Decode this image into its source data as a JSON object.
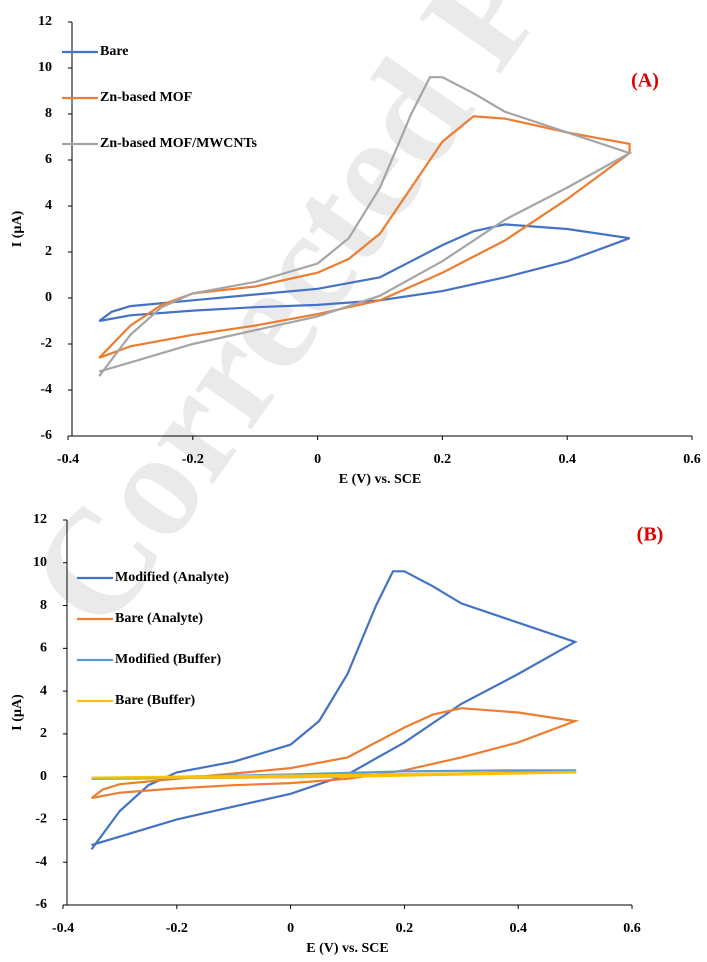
{
  "chart_data": [
    {
      "type": "line",
      "label": "(A)",
      "xlabel": "E (V) vs. SCE",
      "ylabel": "I (µA)",
      "xlim": [
        -0.4,
        0.6
      ],
      "xticks": [
        -0.4,
        -0.2,
        0,
        0.2,
        0.4,
        0.6
      ],
      "ylim": [
        -6,
        12
      ],
      "yticks": [
        -6,
        -4,
        -2,
        0,
        2,
        4,
        6,
        8,
        10,
        12
      ],
      "series": [
        {
          "name": "Bare",
          "color": "#4472c4",
          "x": [
            -0.35,
            -0.33,
            -0.3,
            -0.2,
            -0.1,
            0,
            0.1,
            0.15,
            0.2,
            0.25,
            0.3,
            0.4,
            0.5,
            0.4,
            0.3,
            0.2,
            0.1,
            0,
            -0.1,
            -0.2,
            -0.3,
            -0.35
          ],
          "values": [
            -1.0,
            -0.6,
            -0.35,
            -0.1,
            0.15,
            0.4,
            0.9,
            1.6,
            2.3,
            2.9,
            3.2,
            3.0,
            2.6,
            1.6,
            0.9,
            0.3,
            -0.1,
            -0.3,
            -0.4,
            -0.55,
            -0.75,
            -1.0
          ]
        },
        {
          "name": "Zn-based MOF",
          "color": "#ed7d31",
          "x": [
            -0.35,
            -0.3,
            -0.25,
            -0.2,
            -0.1,
            0,
            0.05,
            0.1,
            0.15,
            0.2,
            0.25,
            0.3,
            0.4,
            0.5,
            0.5,
            0.4,
            0.3,
            0.2,
            0.1,
            0,
            -0.1,
            -0.2,
            -0.3,
            -0.35
          ],
          "values": [
            -2.6,
            -1.2,
            -0.3,
            0.2,
            0.5,
            1.1,
            1.7,
            2.8,
            4.8,
            6.8,
            7.9,
            7.8,
            7.2,
            6.7,
            6.3,
            4.3,
            2.5,
            1.1,
            -0.1,
            -0.7,
            -1.2,
            -1.6,
            -2.1,
            -2.6
          ]
        },
        {
          "name": "Zn-based MOF/MWCNTs",
          "color": "#a5a5a5",
          "x": [
            -0.35,
            -0.3,
            -0.25,
            -0.2,
            -0.1,
            0,
            0.05,
            0.1,
            0.15,
            0.18,
            0.2,
            0.25,
            0.3,
            0.4,
            0.5,
            0.4,
            0.3,
            0.2,
            0.1,
            0,
            -0.1,
            -0.2,
            -0.3,
            -0.35
          ],
          "values": [
            -3.4,
            -1.6,
            -0.4,
            0.2,
            0.7,
            1.5,
            2.6,
            4.8,
            8.0,
            9.6,
            9.6,
            8.9,
            8.1,
            7.2,
            6.3,
            4.8,
            3.4,
            1.6,
            0.1,
            -0.8,
            -1.4,
            -2.0,
            -2.8,
            -3.2
          ]
        }
      ]
    },
    {
      "type": "line",
      "label": "(B)",
      "xlabel": "E (V) vs. SCE",
      "ylabel": "I (µA)",
      "xlim": [
        -0.4,
        0.6
      ],
      "xticks": [
        -0.4,
        -0.2,
        0,
        0.2,
        0.4,
        0.6
      ],
      "ylim": [
        -6,
        12
      ],
      "yticks": [
        -6,
        -4,
        -2,
        0,
        2,
        4,
        6,
        8,
        10,
        12
      ],
      "series": [
        {
          "name": "Modified (Analyte)",
          "color": "#4472c4",
          "x": [
            -0.35,
            -0.3,
            -0.25,
            -0.2,
            -0.1,
            0,
            0.05,
            0.1,
            0.15,
            0.18,
            0.2,
            0.25,
            0.3,
            0.4,
            0.5,
            0.4,
            0.3,
            0.2,
            0.1,
            0,
            -0.1,
            -0.2,
            -0.3,
            -0.35
          ],
          "values": [
            -3.4,
            -1.6,
            -0.4,
            0.2,
            0.7,
            1.5,
            2.6,
            4.8,
            8.0,
            9.6,
            9.6,
            8.9,
            8.1,
            7.2,
            6.3,
            4.8,
            3.4,
            1.6,
            0.1,
            -0.8,
            -1.4,
            -2.0,
            -2.8,
            -3.2
          ]
        },
        {
          "name": "Bare (Analyte)",
          "color": "#ed7d31",
          "x": [
            -0.35,
            -0.33,
            -0.3,
            -0.2,
            -0.1,
            0,
            0.1,
            0.15,
            0.2,
            0.25,
            0.3,
            0.4,
            0.5,
            0.4,
            0.3,
            0.2,
            0.1,
            0,
            -0.1,
            -0.2,
            -0.3,
            -0.35
          ],
          "values": [
            -1.0,
            -0.6,
            -0.35,
            -0.1,
            0.15,
            0.4,
            0.9,
            1.6,
            2.3,
            2.9,
            3.2,
            3.0,
            2.6,
            1.6,
            0.9,
            0.3,
            -0.1,
            -0.3,
            -0.4,
            -0.55,
            -0.75,
            -1.0
          ]
        },
        {
          "name": "Modified (Buffer)",
          "color": "#5b9bd5",
          "x": [
            -0.35,
            -0.2,
            0,
            0.2,
            0.4,
            0.5,
            0.5,
            0.3,
            0.1,
            -0.1,
            -0.35
          ],
          "values": [
            -0.1,
            0.0,
            0.1,
            0.25,
            0.3,
            0.3,
            0.25,
            0.15,
            0.0,
            -0.05,
            -0.1
          ]
        },
        {
          "name": "Bare (Buffer)",
          "color": "#ffc000",
          "x": [
            -0.35,
            -0.2,
            0,
            0.2,
            0.4,
            0.5,
            0.5,
            0.3,
            0.1,
            -0.1,
            -0.35
          ],
          "values": [
            -0.05,
            0.0,
            0.05,
            0.12,
            0.18,
            0.22,
            0.2,
            0.1,
            0.0,
            -0.05,
            -0.05
          ]
        }
      ]
    }
  ]
}
